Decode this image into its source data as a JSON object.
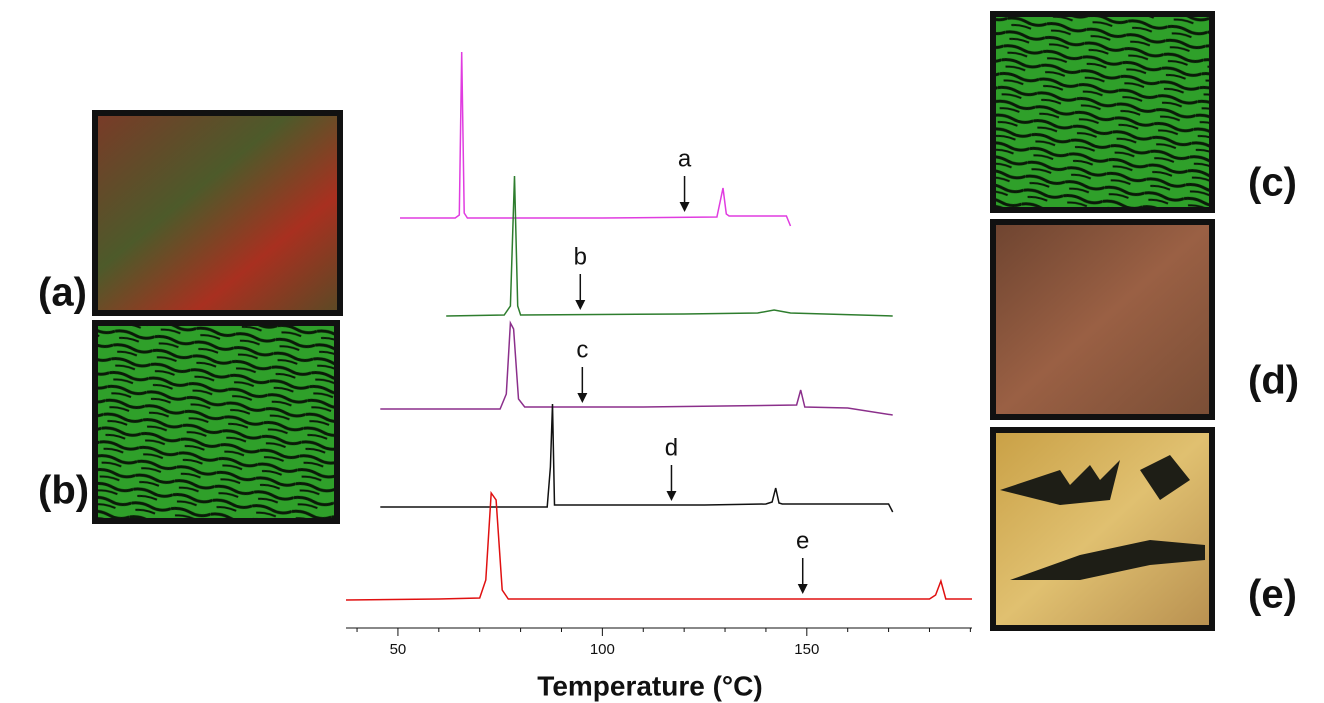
{
  "chart_data": {
    "type": "line",
    "x_label": "Temperature (°C)",
    "xlim": [
      37.3,
      190.4
    ],
    "xticks": [
      50,
      100,
      150
    ],
    "xticks_minor": [
      40,
      60,
      70,
      80,
      90,
      110,
      120,
      130,
      140,
      160,
      170,
      180,
      190
    ],
    "series": [
      {
        "color": "#e03ce0",
        "x": [
          50.5,
          64,
          65,
          65.6,
          66.2,
          67,
          100,
          128,
          129.5,
          130.3,
          131,
          145,
          146
        ],
        "values": [
          0,
          0,
          3,
          166,
          5,
          0,
          0,
          1,
          30,
          4,
          2,
          2,
          -8
        ]
      },
      {
        "color": "#2e7d2e",
        "x": [
          61.8,
          76,
          77.5,
          78.5,
          79.3,
          80,
          120,
          138,
          142,
          146,
          171
        ],
        "values": [
          0,
          1,
          10,
          140,
          10,
          1,
          2,
          3,
          6,
          3,
          0
        ]
      },
      {
        "color": "#8b2f8b",
        "x": [
          45.7,
          75,
          76.5,
          77.5,
          78.3,
          79.5,
          81,
          110,
          147.5,
          148.5,
          149.5,
          160,
          171
        ],
        "values": [
          0,
          0,
          15,
          86,
          80,
          10,
          2,
          2,
          4,
          19,
          2,
          1,
          -6
        ]
      },
      {
        "color": "#111111",
        "x": [
          45.7,
          86.5,
          87.3,
          87.8,
          88.3,
          125,
          140,
          141.5,
          142.4,
          143.2,
          144,
          170,
          171
        ],
        "values": [
          0,
          0,
          40,
          103,
          2,
          2,
          3,
          5,
          19,
          4,
          3,
          3,
          -5
        ]
      },
      {
        "color": "#e01010",
        "x": [
          37.3,
          60,
          70,
          71.5,
          72.8,
          74,
          75.5,
          77,
          100,
          180,
          181.5,
          182.8,
          184,
          190.4
        ],
        "values": [
          0,
          1,
          2,
          20,
          107,
          100,
          10,
          1,
          1,
          1,
          5,
          19,
          1,
          1
        ]
      }
    ],
    "annotations": [
      {
        "text": "a",
        "x": 120.1
      },
      {
        "text": "b",
        "x": 94.6
      },
      {
        "text": "c",
        "x": 95.1
      },
      {
        "text": "d",
        "x": 116.9
      },
      {
        "text": "e",
        "x": 149
      }
    ],
    "image_labels": [
      "(a)",
      "(b)",
      "(c)",
      "(d)",
      "(e)"
    ]
  }
}
